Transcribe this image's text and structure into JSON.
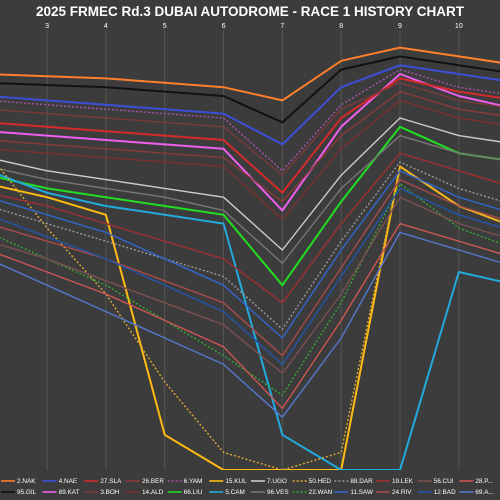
{
  "chart_data": {
    "type": "line",
    "title": "2025 FRMEC Rd.3 DUBAI AUTODROME - RACE 1 HISTORY CHART",
    "x": [
      2,
      3,
      4,
      5,
      6,
      7,
      8,
      9,
      10,
      11
    ],
    "x_tick_labels": [
      "3",
      "4",
      "5",
      "6",
      "7",
      "8",
      "9",
      "10"
    ],
    "xlim": [
      2.2,
      10.7
    ],
    "ylabel": "",
    "ylim": [
      100,
      0
    ],
    "grid": true,
    "legend_placement": "bottom",
    "series": [
      {
        "name": "2.NAK",
        "color": "#ff7f2a",
        "style": "solid",
        "values": [
          10,
          10.5,
          11,
          12,
          13,
          16,
          7,
          4,
          6,
          8
        ]
      },
      {
        "name": "95.GIL",
        "color": "#111111",
        "style": "solid",
        "values": [
          12,
          12.5,
          13,
          14,
          15,
          21,
          9,
          6,
          8,
          10
        ]
      },
      {
        "name": "4.NAE",
        "color": "#3b4fd8",
        "style": "solid",
        "values": [
          15,
          16,
          17,
          18,
          19,
          26,
          13,
          8,
          10,
          12
        ]
      },
      {
        "name": "89.KAT",
        "color": "#ee5fee",
        "style": "solid",
        "values": [
          23,
          24,
          25,
          26,
          27,
          41,
          22,
          10,
          15,
          18
        ]
      },
      {
        "name": "27.SLA",
        "color": "#d42a2a",
        "style": "solid",
        "values": [
          21,
          22,
          23,
          24,
          25,
          37,
          20,
          11,
          14,
          16
        ]
      },
      {
        "name": "3.BOH",
        "color": "#7a3a3a",
        "style": "solid",
        "values": [
          18,
          19,
          20,
          21,
          22,
          33,
          18,
          12,
          16,
          18
        ]
      },
      {
        "name": "26.BER",
        "color": "#8a3a3a",
        "style": "solid",
        "values": [
          25,
          26,
          27,
          28,
          29,
          39,
          24,
          14,
          18,
          20
        ]
      },
      {
        "name": "14.ALD",
        "color": "#7a3030",
        "style": "solid",
        "values": [
          27,
          28,
          29,
          30,
          31,
          43,
          27,
          16,
          20,
          22
        ]
      },
      {
        "name": "6.YAM",
        "color": "#aa55aa",
        "style": "dotted",
        "values": [
          16,
          17,
          18,
          19,
          20,
          32,
          17,
          9,
          13,
          15
        ]
      },
      {
        "name": "66.LIU",
        "color": "#22dd22",
        "style": "solid",
        "values": [
          33,
          36,
          38,
          40,
          42,
          58,
          39,
          22,
          28,
          30
        ]
      },
      {
        "name": "15.KUL",
        "color": "#ffbb11",
        "style": "solid",
        "values": [
          35,
          38,
          42,
          92,
          100,
          100,
          100,
          31,
          40,
          45
        ]
      },
      {
        "name": "5.CAM",
        "color": "#22aadd",
        "style": "solid",
        "values": [
          32,
          37,
          40,
          42,
          44,
          92,
          100,
          100,
          55,
          58
        ]
      },
      {
        "name": "7.UGO",
        "color": "#cccccc",
        "style": "solid",
        "values": [
          29,
          32,
          34,
          36,
          38,
          50,
          33,
          20,
          24,
          26
        ]
      },
      {
        "name": "96.VES",
        "color": "#777777",
        "style": "solid",
        "values": [
          31,
          34,
          36,
          38,
          41,
          53,
          36,
          24,
          28,
          30
        ]
      },
      {
        "name": "50.HED",
        "color": "#ddaa33",
        "style": "dotted",
        "values": [
          28,
          45,
          60,
          80,
          96,
          100,
          96,
          31,
          40,
          45
        ]
      },
      {
        "name": "22.WAN",
        "color": "#33aa33",
        "style": "dotted",
        "values": [
          46,
          52,
          58,
          66,
          74,
          83,
          62,
          35,
          45,
          50
        ]
      },
      {
        "name": "88.DAR",
        "color": "#999999",
        "style": "dotted",
        "values": [
          40,
          44,
          48,
          52,
          56,
          68,
          48,
          30,
          36,
          40
        ]
      },
      {
        "name": "11.SAW",
        "color": "#3366cc",
        "style": "solid",
        "values": [
          38,
          42,
          46,
          52,
          58,
          70,
          50,
          32,
          38,
          42
        ]
      },
      {
        "name": "19.LEK",
        "color": "#a03030",
        "style": "solid",
        "values": [
          37,
          40,
          44,
          48,
          52,
          62,
          44,
          28,
          32,
          36
        ]
      },
      {
        "name": "24.RIV",
        "color": "#a84a4a",
        "style": "solid",
        "values": [
          44,
          48,
          52,
          57,
          62,
          74,
          54,
          34,
          40,
          44
        ]
      },
      {
        "name": "56.CUI",
        "color": "#7a5050",
        "style": "solid",
        "values": [
          48,
          52,
          57,
          62,
          67,
          78,
          60,
          38,
          44,
          48
        ]
      },
      {
        "name": "12.BAD",
        "color": "#2255aa",
        "style": "solid",
        "values": [
          42,
          47,
          52,
          58,
          64,
          76,
          56,
          36,
          42,
          46
        ]
      },
      {
        "name": "28.P...",
        "color": "#cc5555",
        "style": "solid",
        "values": [
          50,
          55,
          60,
          66,
          72,
          86,
          66,
          44,
          48,
          52
        ]
      },
      {
        "name": "69.A...",
        "color": "#5577cc",
        "style": "solid",
        "values": [
          52,
          58,
          64,
          70,
          76,
          88,
          70,
          46,
          50,
          54
        ]
      }
    ]
  }
}
